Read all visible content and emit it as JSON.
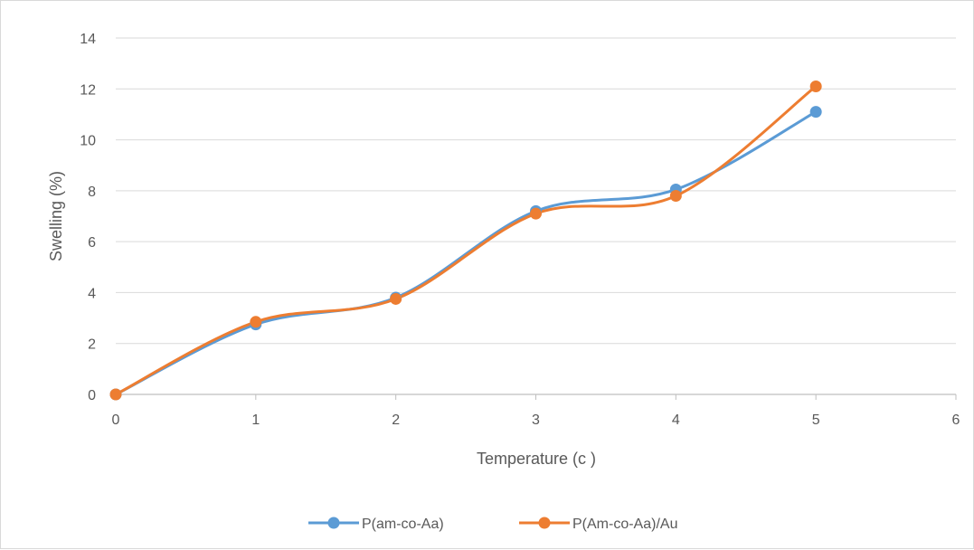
{
  "chart_data": {
    "type": "line",
    "xlabel": "Temperature (c )",
    "ylabel": "Swelling (%)",
    "xlim": [
      0,
      6
    ],
    "ylim": [
      0,
      14
    ],
    "x_ticks": [
      0,
      1,
      2,
      3,
      4,
      5,
      6
    ],
    "y_ticks": [
      0,
      2,
      4,
      6,
      8,
      10,
      12,
      14
    ],
    "grid": "horizontal",
    "smooth": true,
    "legend_position": "bottom",
    "series": [
      {
        "name": "P(am-co-Aa)",
        "color": "#5b9bd5",
        "x": [
          0,
          1,
          2,
          3,
          4,
          5
        ],
        "y": [
          0,
          2.75,
          3.8,
          7.2,
          8.05,
          11.1
        ]
      },
      {
        "name": "P(Am-co-Aa)/Au",
        "color": "#ed7d31",
        "x": [
          0,
          1,
          2,
          3,
          4,
          5
        ],
        "y": [
          0,
          2.85,
          3.75,
          7.1,
          7.8,
          12.1
        ]
      }
    ]
  }
}
